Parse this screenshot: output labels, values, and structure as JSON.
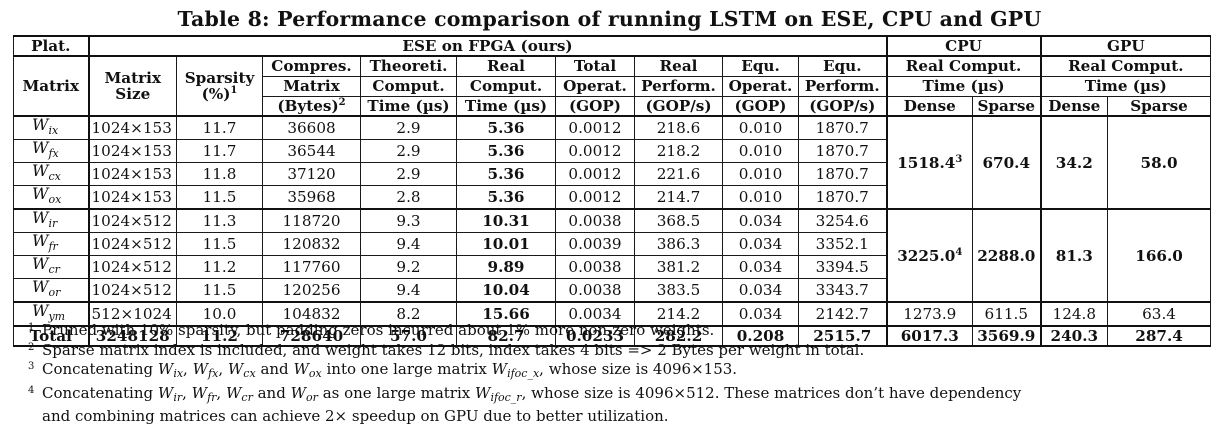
{
  "caption": "Table 8: Performance comparison of running LSTM on ESE, CPU and GPU",
  "header": {
    "plat": "Plat.",
    "ese_group": "ESE on FPGA (ours)",
    "cpu_group": "CPU",
    "gpu_group": "GPU",
    "matrix": "Matrix",
    "matrix_size": [
      "Matrix",
      "Size"
    ],
    "sparsity": [
      "Sparsity",
      "(%)"
    ],
    "sparsity_sup": "1",
    "compres": [
      "Compres.",
      "Matrix",
      "(Bytes)"
    ],
    "compres_sup": "2",
    "theoreti": [
      "Theoreti.",
      "Comput.",
      "Time (µs)"
    ],
    "real_comput": [
      "Real",
      "Comput.",
      "Time (µs)"
    ],
    "total_operat": [
      "Total",
      "Operat.",
      "(GOP)"
    ],
    "real_perform": [
      "Real",
      "Perform.",
      "(GOP/s)"
    ],
    "equ_operat": [
      "Equ.",
      "Operat.",
      "(GOP)"
    ],
    "equ_perform": [
      "Equ.",
      "Perform.",
      "(GOP/s)"
    ],
    "cpu_time": [
      "Real Comput.",
      "Time (µs)"
    ],
    "gpu_time": [
      "Real Comput.",
      "Time (µs)"
    ],
    "dense": "Dense",
    "sparse": "Sparse"
  },
  "rows": [
    {
      "w": "W",
      "sub": "ix",
      "size": "1024×153",
      "sparsity": "11.7",
      "compres": "36608",
      "theo": "2.9",
      "real": "5.36",
      "total_op": "0.0012",
      "real_perf": "218.6",
      "equ_op": "0.010",
      "equ_perf": "1870.7"
    },
    {
      "w": "W",
      "sub": "fx",
      "size": "1024×153",
      "sparsity": "11.7",
      "compres": "36544",
      "theo": "2.9",
      "real": "5.36",
      "total_op": "0.0012",
      "real_perf": "218.2",
      "equ_op": "0.010",
      "equ_perf": "1870.7"
    },
    {
      "w": "W",
      "sub": "cx",
      "size": "1024×153",
      "sparsity": "11.8",
      "compres": "37120",
      "theo": "2.9",
      "real": "5.36",
      "total_op": "0.0012",
      "real_perf": "221.6",
      "equ_op": "0.010",
      "equ_perf": "1870.7"
    },
    {
      "w": "W",
      "sub": "ox",
      "size": "1024×153",
      "sparsity": "11.5",
      "compres": "35968",
      "theo": "2.8",
      "real": "5.36",
      "total_op": "0.0012",
      "real_perf": "214.7",
      "equ_op": "0.010",
      "equ_perf": "1870.7"
    },
    {
      "w": "W",
      "sub": "ir",
      "size": "1024×512",
      "sparsity": "11.3",
      "compres": "118720",
      "theo": "9.3",
      "real": "10.31",
      "total_op": "0.0038",
      "real_perf": "368.5",
      "equ_op": "0.034",
      "equ_perf": "3254.6"
    },
    {
      "w": "W",
      "sub": "fr",
      "size": "1024×512",
      "sparsity": "11.5",
      "compres": "120832",
      "theo": "9.4",
      "real": "10.01",
      "total_op": "0.0039",
      "real_perf": "386.3",
      "equ_op": "0.034",
      "equ_perf": "3352.1"
    },
    {
      "w": "W",
      "sub": "cr",
      "size": "1024×512",
      "sparsity": "11.2",
      "compres": "117760",
      "theo": "9.2",
      "real": "9.89",
      "total_op": "0.0038",
      "real_perf": "381.2",
      "equ_op": "0.034",
      "equ_perf": "3394.5"
    },
    {
      "w": "W",
      "sub": "or",
      "size": "1024×512",
      "sparsity": "11.5",
      "compres": "120256",
      "theo": "9.4",
      "real": "10.04",
      "total_op": "0.0038",
      "real_perf": "383.5",
      "equ_op": "0.034",
      "equ_perf": "3343.7"
    },
    {
      "w": "W",
      "sub": "ym",
      "size": "512×1024",
      "sparsity": "10.0",
      "compres": "104832",
      "theo": "8.2",
      "real": "15.66",
      "total_op": "0.0034",
      "real_perf": "214.2",
      "equ_op": "0.034",
      "equ_perf": "2142.7"
    }
  ],
  "group1": {
    "cpu_dense": "1518.4",
    "cpu_dense_sup": "3",
    "cpu_sparse": "670.4",
    "gpu_dense": "34.2",
    "gpu_sparse": "58.0"
  },
  "group2": {
    "cpu_dense": "3225.0",
    "cpu_dense_sup": "4",
    "cpu_sparse": "2288.0",
    "gpu_dense": "81.3",
    "gpu_sparse": "166.0"
  },
  "wym_row": {
    "cpu_dense": "1273.9",
    "cpu_sparse": "611.5",
    "gpu_dense": "124.8",
    "gpu_sparse": "63.4"
  },
  "total": {
    "label": "Total",
    "size": "3248128",
    "sparsity": "11.2",
    "compres": "728640",
    "theo": "57.0",
    "real": "82.7",
    "total_op": "0.0233",
    "real_perf": "282.2",
    "equ_op": "0.208",
    "equ_perf": "2515.7",
    "cpu_dense": "6017.3",
    "cpu_sparse": "3569.9",
    "gpu_dense": "240.3",
    "gpu_sparse": "287.4"
  },
  "notes": {
    "n1_mark": "1",
    "n1": "Pruned with 10% sparsity, but padding zeros incurred about 1% more non-zero weights.",
    "n2_mark": "2",
    "n2": "Sparse matrix index is included, and weight takes 12 bits, index takes 4 bits => 2 Bytes per weight in total.",
    "n3_mark": "3",
    "n3_a": "Concatenating",
    "n3_b": "into one large matrix",
    "n3_c": "whose size is 4096×153.",
    "n3_big_sub": "ifoc_x",
    "n4_mark": "4",
    "n4_a": "Concatenating",
    "n4_b": "as one large matrix",
    "n4_c": "whose size is 4096×512.  These matrices don’t have dependency",
    "n4_d": "and combining matrices can achieve 2× speedup on GPU due to better utilization.",
    "n4_big_sub": "ifoc_r",
    "and": "and",
    "comma": ","
  }
}
